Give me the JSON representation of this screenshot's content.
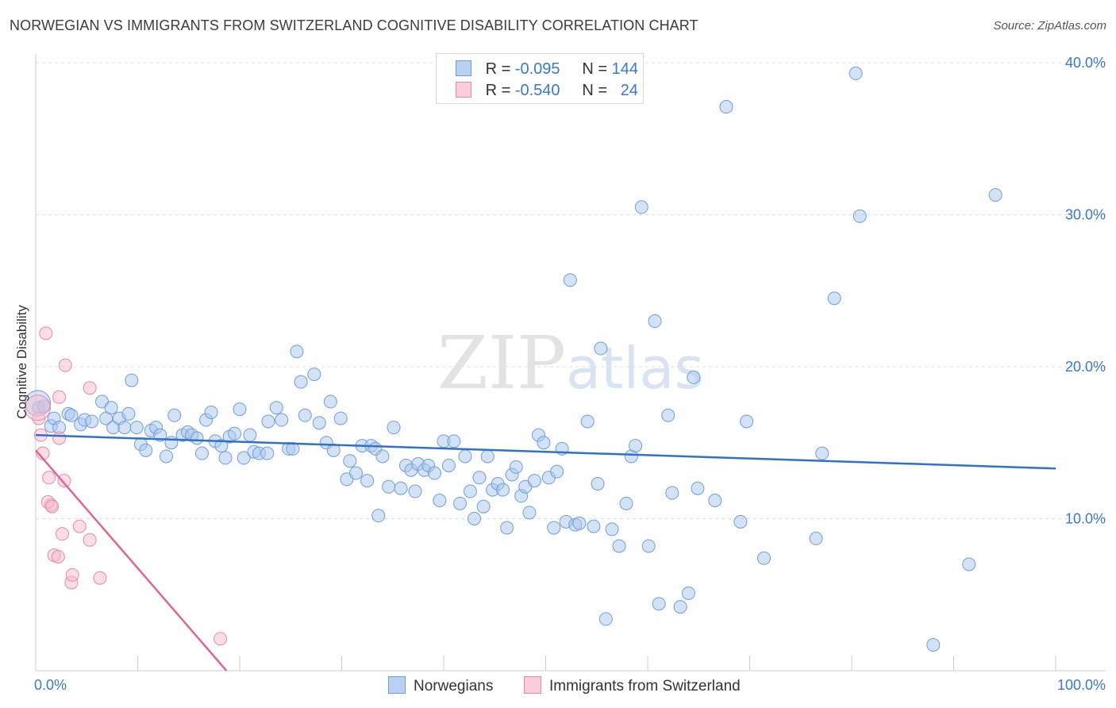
{
  "header": {
    "title": "NORWEGIAN VS IMMIGRANTS FROM SWITZERLAND COGNITIVE DISABILITY CORRELATION CHART",
    "source": "Source: ZipAtlas.com"
  },
  "watermark": {
    "zip": "ZIP",
    "atlas": "atlas"
  },
  "legend": {
    "rows": [
      {
        "r_label": "R =",
        "r_value": "-0.095",
        "n_label": "N =",
        "n_value": "144"
      },
      {
        "r_label": "R =",
        "r_value": "-0.540",
        "n_label": "N =",
        "n_value": "24"
      }
    ]
  },
  "chart_data": {
    "type": "scatter",
    "title": "NORWEGIAN VS IMMIGRANTS FROM SWITZERLAND COGNITIVE DISABILITY CORRELATION CHART",
    "xlabel": "",
    "ylabel": "Cognitive Disability",
    "xlim": [
      0,
      100
    ],
    "ylim": [
      0,
      40
    ],
    "x_tick_labels": [
      "0.0%",
      "100.0%"
    ],
    "y_ticks": [
      10,
      20,
      30,
      40
    ],
    "y_tick_labels": [
      "10.0%",
      "20.0%",
      "30.0%",
      "40.0%"
    ],
    "grid": true,
    "legend_position": "bottom",
    "colors": {
      "norwegians_fill": "#a9c6ee",
      "norwegians_stroke": "#6d9fd8",
      "norwegians_line": "#2f73c9",
      "swiss_fill": "#f6bccd",
      "swiss_stroke": "#e88aa8",
      "swiss_line": "#e06592",
      "grid": "#dddddd",
      "tick_label": "#3a78c9"
    },
    "series": [
      {
        "name": "Norwegians",
        "trend": {
          "x": [
            0,
            100
          ],
          "y": [
            15.5,
            13.3
          ]
        },
        "points": [
          [
            0.3,
            17.3
          ],
          [
            0.8,
            17.4
          ],
          [
            1.5,
            16.1
          ],
          [
            1.8,
            16.6
          ],
          [
            2.3,
            16.0
          ],
          [
            3.2,
            16.9
          ],
          [
            3.5,
            16.8
          ],
          [
            4.4,
            16.2
          ],
          [
            4.8,
            16.5
          ],
          [
            5.5,
            16.4
          ],
          [
            6.5,
            17.7
          ],
          [
            6.9,
            16.6
          ],
          [
            7.4,
            17.3
          ],
          [
            7.6,
            16.0
          ],
          [
            8.2,
            16.6
          ],
          [
            8.7,
            16.0
          ],
          [
            9.1,
            16.9
          ],
          [
            9.4,
            19.1
          ],
          [
            9.9,
            16.0
          ],
          [
            10.3,
            14.9
          ],
          [
            10.8,
            14.5
          ],
          [
            11.3,
            15.8
          ],
          [
            11.8,
            16.0
          ],
          [
            12.2,
            15.5
          ],
          [
            12.8,
            14.1
          ],
          [
            13.3,
            15.0
          ],
          [
            13.6,
            16.8
          ],
          [
            14.4,
            15.5
          ],
          [
            14.9,
            15.7
          ],
          [
            15.3,
            15.5
          ],
          [
            15.8,
            15.3
          ],
          [
            16.3,
            14.3
          ],
          [
            16.7,
            16.5
          ],
          [
            17.2,
            17.0
          ],
          [
            17.6,
            15.1
          ],
          [
            18.2,
            14.8
          ],
          [
            18.6,
            14.0
          ],
          [
            19.0,
            15.4
          ],
          [
            19.5,
            15.6
          ],
          [
            20.0,
            17.2
          ],
          [
            20.4,
            14.0
          ],
          [
            21.0,
            15.5
          ],
          [
            21.4,
            14.4
          ],
          [
            21.9,
            14.3
          ],
          [
            22.8,
            16.4
          ],
          [
            22.7,
            14.3
          ],
          [
            23.6,
            17.3
          ],
          [
            24.1,
            16.5
          ],
          [
            24.8,
            14.6
          ],
          [
            25.2,
            14.6
          ],
          [
            25.6,
            21.0
          ],
          [
            26.0,
            19.0
          ],
          [
            26.4,
            16.8
          ],
          [
            27.3,
            19.5
          ],
          [
            27.8,
            16.3
          ],
          [
            28.5,
            15.0
          ],
          [
            28.9,
            17.7
          ],
          [
            29.2,
            14.5
          ],
          [
            29.9,
            16.6
          ],
          [
            30.5,
            12.6
          ],
          [
            30.8,
            13.8
          ],
          [
            31.4,
            13.0
          ],
          [
            32.0,
            14.8
          ],
          [
            32.5,
            12.5
          ],
          [
            32.9,
            14.8
          ],
          [
            33.3,
            14.6
          ],
          [
            33.6,
            10.2
          ],
          [
            34.0,
            14.1
          ],
          [
            34.6,
            12.1
          ],
          [
            35.1,
            16.0
          ],
          [
            35.8,
            12.0
          ],
          [
            36.3,
            13.5
          ],
          [
            36.8,
            13.2
          ],
          [
            37.2,
            11.8
          ],
          [
            37.5,
            13.6
          ],
          [
            38.1,
            13.2
          ],
          [
            38.5,
            13.5
          ],
          [
            39.1,
            13.0
          ],
          [
            39.6,
            11.2
          ],
          [
            40.0,
            15.1
          ],
          [
            40.5,
            13.5
          ],
          [
            41.0,
            15.1
          ],
          [
            41.6,
            11.0
          ],
          [
            42.1,
            14.1
          ],
          [
            42.6,
            11.8
          ],
          [
            43.0,
            10.0
          ],
          [
            43.5,
            12.7
          ],
          [
            43.9,
            10.8
          ],
          [
            44.3,
            14.1
          ],
          [
            44.8,
            11.9
          ],
          [
            45.3,
            12.3
          ],
          [
            45.8,
            11.9
          ],
          [
            46.2,
            9.4
          ],
          [
            46.7,
            12.9
          ],
          [
            47.1,
            13.4
          ],
          [
            47.6,
            11.5
          ],
          [
            48.0,
            12.1
          ],
          [
            48.4,
            10.4
          ],
          [
            48.9,
            12.5
          ],
          [
            49.3,
            15.5
          ],
          [
            49.8,
            15.0
          ],
          [
            50.3,
            12.7
          ],
          [
            50.8,
            9.4
          ],
          [
            51.1,
            13.1
          ],
          [
            51.6,
            14.6
          ],
          [
            52.0,
            9.8
          ],
          [
            52.4,
            25.7
          ],
          [
            52.9,
            9.6
          ],
          [
            53.3,
            9.7
          ],
          [
            54.1,
            16.4
          ],
          [
            54.7,
            9.5
          ],
          [
            55.1,
            12.3
          ],
          [
            55.4,
            21.2
          ],
          [
            55.9,
            3.4
          ],
          [
            56.5,
            9.3
          ],
          [
            57.2,
            8.2
          ],
          [
            57.9,
            11.0
          ],
          [
            58.4,
            14.1
          ],
          [
            58.8,
            14.8
          ],
          [
            59.4,
            30.5
          ],
          [
            60.1,
            8.2
          ],
          [
            60.7,
            23.0
          ],
          [
            61.1,
            4.4
          ],
          [
            62.0,
            16.8
          ],
          [
            62.4,
            11.7
          ],
          [
            63.2,
            4.2
          ],
          [
            64.0,
            5.1
          ],
          [
            64.5,
            19.3
          ],
          [
            64.9,
            12.0
          ],
          [
            66.6,
            11.2
          ],
          [
            67.7,
            37.1
          ],
          [
            69.7,
            16.4
          ],
          [
            69.1,
            9.8
          ],
          [
            71.4,
            7.4
          ],
          [
            76.5,
            8.7
          ],
          [
            77.1,
            14.3
          ],
          [
            78.3,
            24.5
          ],
          [
            80.4,
            39.3
          ],
          [
            80.8,
            29.9
          ],
          [
            94.1,
            31.3
          ],
          [
            91.5,
            7.0
          ],
          [
            88.0,
            1.7
          ]
        ],
        "big_point": [
          0.2,
          17.6
        ]
      },
      {
        "name": "Immigrants from Switzerland",
        "trend": {
          "x": [
            0,
            18.7
          ],
          "y": [
            14.5,
            0
          ]
        },
        "points": [
          [
            0.3,
            16.6
          ],
          [
            0.5,
            15.5
          ],
          [
            0.7,
            14.3
          ],
          [
            1.0,
            22.2
          ],
          [
            1.3,
            12.7
          ],
          [
            1.5,
            10.9
          ],
          [
            1.2,
            11.1
          ],
          [
            1.6,
            10.8
          ],
          [
            1.8,
            7.6
          ],
          [
            2.2,
            7.5
          ],
          [
            2.3,
            15.3
          ],
          [
            2.3,
            18.0
          ],
          [
            2.6,
            9.0
          ],
          [
            2.8,
            12.5
          ],
          [
            2.9,
            20.1
          ],
          [
            3.5,
            5.8
          ],
          [
            3.6,
            6.3
          ],
          [
            4.3,
            9.5
          ],
          [
            5.3,
            8.6
          ],
          [
            5.3,
            18.6
          ],
          [
            6.3,
            6.1
          ],
          [
            18.1,
            2.1
          ]
        ],
        "big_point": [
          0.2,
          17.3
        ]
      }
    ]
  },
  "bottom_legend": {
    "items": [
      {
        "label": "Norwegians"
      },
      {
        "label": "Immigrants from Switzerland"
      }
    ]
  }
}
